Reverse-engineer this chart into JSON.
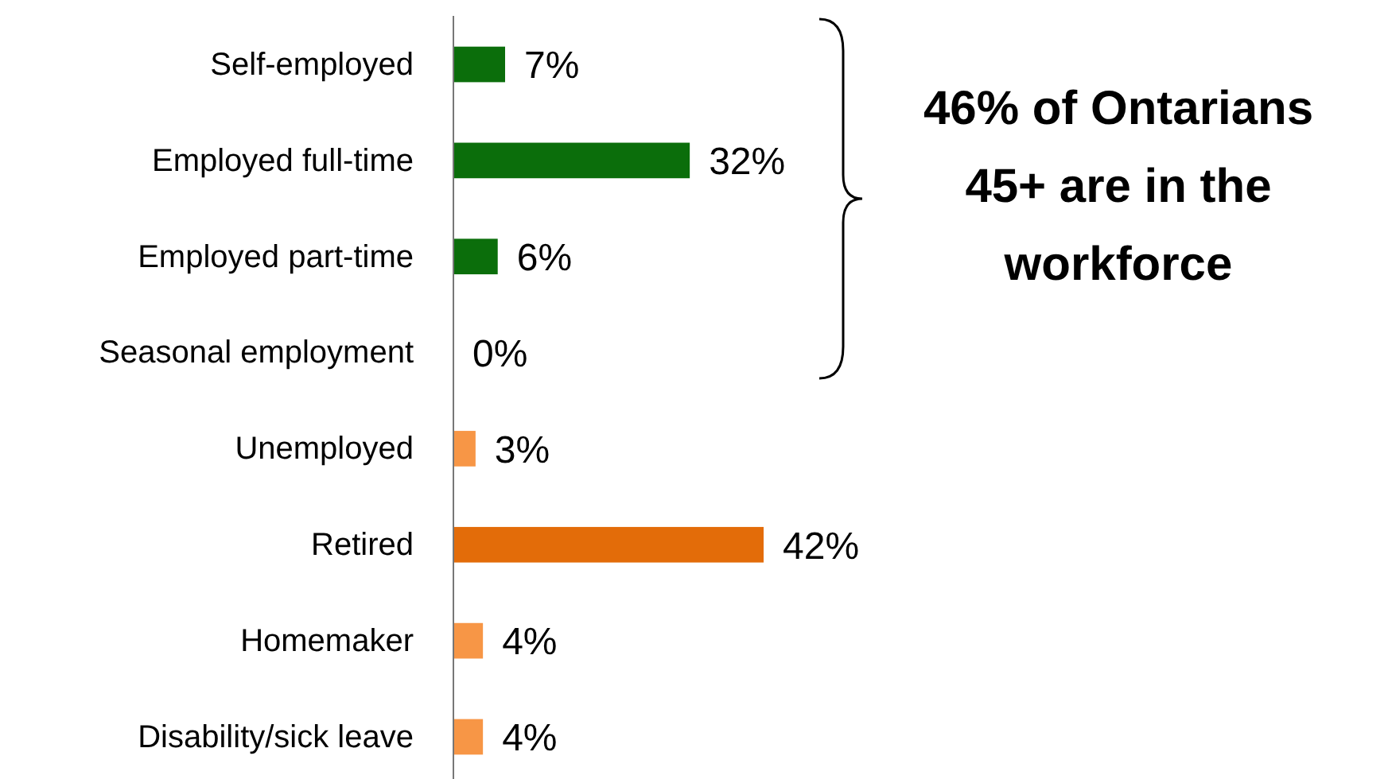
{
  "chart_data": {
    "type": "bar",
    "orientation": "horizontal",
    "categories": [
      "Self-employed",
      "Employed full-time",
      "Employed part-time",
      "Seasonal employment",
      "Unemployed",
      "Retired",
      "Homemaker",
      "Disability/sick leave"
    ],
    "values": [
      7,
      32,
      6,
      0,
      3,
      42,
      4,
      4
    ],
    "colors": [
      "#0b6e0b",
      "#0b6e0b",
      "#0b6e0b",
      "#0b6e0b",
      "#f79646",
      "#e36c09",
      "#f79646",
      "#f79646"
    ],
    "value_labels": [
      "7%",
      "32%",
      "6%",
      "0%",
      "3%",
      "42%",
      "4%",
      "4%"
    ],
    "annotations": [
      "46% of Ontarians 45+ are in the workforce"
    ]
  }
}
